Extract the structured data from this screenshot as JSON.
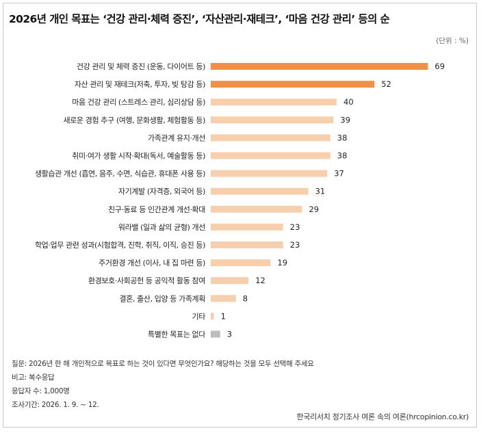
{
  "chart_data": {
    "type": "bar",
    "orientation": "horizontal",
    "title": "2026년 개인 목표는 ‘건강 관리·체력 증진’, ‘자산관리·재테크’, ‘마음 건강 관리’ 등의 순",
    "unit_label": "(단위 : %)",
    "categories": [
      "건강 관리  및  체력 증진 (운동, 다이어트 등)",
      "자산 관리 및 재테크(저축, 투자, 빚 탕감 등)",
      "마음 건강 관리 (스트레스 관리, 심리상담 등)",
      "새로운 경험 추구 (여행, 문화생활, 체험활동 등)",
      "가족관계  유지·개선",
      "취미·여가 생활 시작·확대(독서, 예술활동 등)",
      "생활습관 개선 (흡연, 음주, 수면, 식습관, 휴대폰 사용 등)",
      "자기계발 (자격증, 외국어 등)",
      "친구·동료 등 인간관계 개선·확대",
      "워라밸 (일과 삶의 균형) 개선",
      "학업·업무 관련 성과(시험합격, 진학, 취직, 이직, 승진 등)",
      "주거환경 개선 (이사, 내 집 마련 등)",
      "환경보호·사회공헌 등 공익적 활동 참여",
      "결혼, 출산, 입양 등 가족계획",
      "기타",
      "특별한 목표는 없다"
    ],
    "values": [
      69,
      52,
      40,
      39,
      38,
      38,
      37,
      31,
      29,
      23,
      23,
      19,
      12,
      8,
      1,
      3
    ],
    "value_labels": [
      "69",
      "52",
      "40",
      "39",
      "38",
      "38",
      "37",
      "31",
      "29",
      "23",
      "23",
      "19",
      "12",
      "8",
      "1",
      "3"
    ],
    "xlim": [
      0,
      70
    ],
    "colors": {
      "top": "#f0914a",
      "rest": "#f8cfad",
      "none": "#bdbdbd"
    }
  },
  "notes": {
    "question": "질문: 2026년 한 해 개인적으로 목표로 하는 것이 있다면 무엇인가요? 해당하는 것을 모두 선택해 주세요",
    "type": "비고: 복수응답",
    "sample": "응답자 수: 1,000명",
    "period": "조사기간: 2026. 1. 9. ~ 12."
  },
  "source": "한국리서치 정기조사 여론 속의 여론(hrcopinion.co.kr)"
}
